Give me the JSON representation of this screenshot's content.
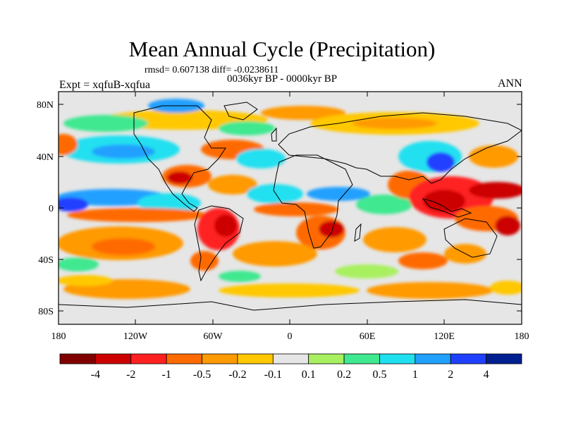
{
  "title": "Mean Annual Cycle (Precipitation)",
  "stats_line": "rmsd= 0.607138 diff= -0.0238611",
  "period": "0036kyr BP - 0000kyr BP",
  "experiment": "Expt = xqfuB-xqfua",
  "season": "ANN",
  "lat_labels": [
    "80N",
    "40N",
    "0",
    "40S",
    "80S"
  ],
  "lon_labels": [
    "180",
    "120W",
    "60W",
    "0",
    "60E",
    "120E",
    "180"
  ],
  "colorbar": {
    "colors": [
      "#800000",
      "#cc0000",
      "#ff2020",
      "#ff6a00",
      "#ff9a00",
      "#ffc800",
      "#e6e6e6",
      "#a8f060",
      "#40e890",
      "#20e0f0",
      "#20a0ff",
      "#2040ff",
      "#002090"
    ],
    "labels": [
      "-4",
      "-2",
      "-1",
      "-0.5",
      "-0.2",
      "-0.1",
      "0.1",
      "0.2",
      "0.5",
      "1",
      "2",
      "4"
    ]
  }
}
